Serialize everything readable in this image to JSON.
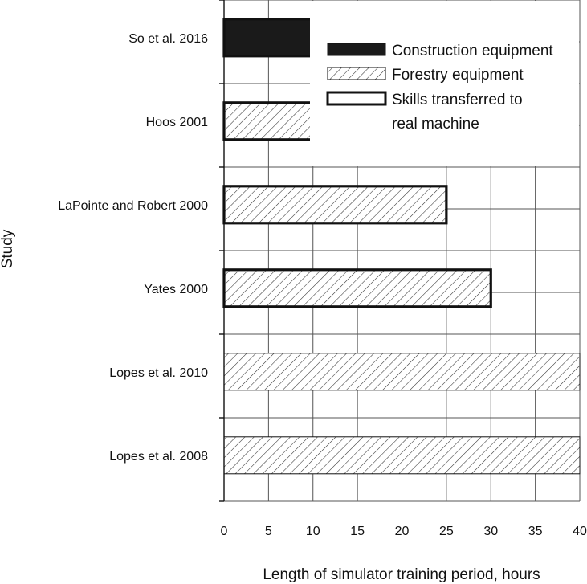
{
  "chart_data": {
    "type": "bar",
    "orientation": "horizontal",
    "categories": [
      "So et al. 2016",
      "Hoos 2001",
      "LaPointe and Robert 2000",
      "Yates 2000",
      "Lopes et al. 2010",
      "Lopes et al. 2008"
    ],
    "values": [
      10,
      10,
      25,
      30,
      40,
      40
    ],
    "bar_style": [
      "solid",
      "hatched",
      "hatched",
      "hatched",
      "hatched",
      "hatched"
    ],
    "bar_outline": [
      "thick",
      "thick",
      "thick",
      "thick",
      "thin",
      "thin"
    ],
    "xlabel": "Length of simulator training period, hours",
    "ylabel": "Study",
    "xlim": [
      0,
      40
    ],
    "xticks": [
      0,
      5,
      10,
      15,
      20,
      25,
      30,
      35,
      40
    ],
    "grid": true,
    "legend": {
      "placement": "top-right",
      "entries": [
        {
          "label_lines": [
            "Construction equipment"
          ],
          "style": "solid"
        },
        {
          "label_lines": [
            "Forestry equipment"
          ],
          "style": "hatched"
        },
        {
          "label_lines": [
            "Skills transferred to",
            "real machine"
          ],
          "style": "thick-outline"
        }
      ]
    },
    "colors": {
      "fill": "#1a1a1a",
      "hatch": "#333333",
      "grid": "#555555",
      "background": "#ffffff"
    }
  }
}
